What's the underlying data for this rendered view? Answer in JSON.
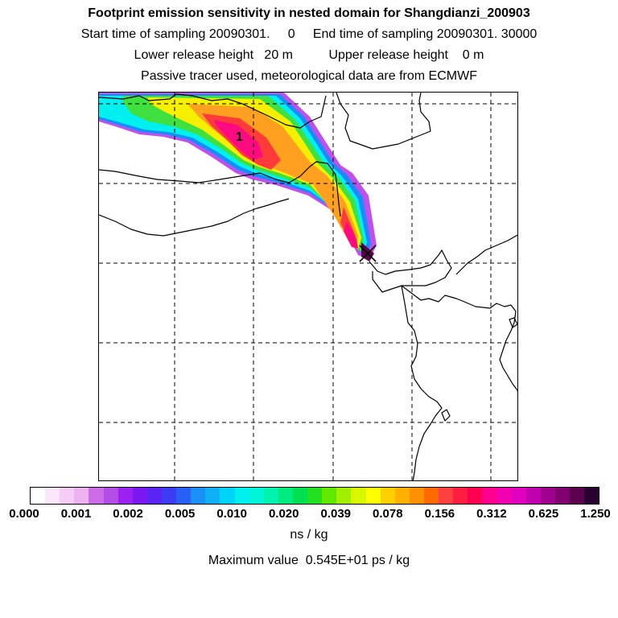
{
  "header": {
    "title": "Footprint emission sensitivity in nested domain for Shangdianzi_200903",
    "line2": "Start time of sampling 20090301.     0     End time of sampling 20090301. 30000",
    "line3": "Lower release height   20 m          Upper release height    0 m",
    "line4": "Passive tracer used, meteorological data are from ECMWF"
  },
  "map": {
    "marker_label": "1",
    "release_marker_icon": "x-cross-icon"
  },
  "colorbar": {
    "colors": [
      "#ffffff",
      "#fbe6fb",
      "#f5cdf6",
      "#eeb2f0",
      "#cc6ae8",
      "#b44de6",
      "#9c20f0",
      "#7a18f2",
      "#5a24f4",
      "#3c3cf4",
      "#2860f6",
      "#1890f8",
      "#10b0f6",
      "#00d4f6",
      "#00f0f0",
      "#00f4d8",
      "#00f4b0",
      "#00ec80",
      "#00e050",
      "#20e020",
      "#60e800",
      "#a0f000",
      "#d8f800",
      "#ffff00",
      "#ffd000",
      "#ffb000",
      "#ff9000",
      "#ff6a00",
      "#ff4040",
      "#ff1e40",
      "#ff0050",
      "#ff0090",
      "#f000b0",
      "#e000c0",
      "#c000b0",
      "#a00090",
      "#800070",
      "#5c0050",
      "#2a0030"
    ],
    "ticks": [
      "0.000",
      "0.001",
      "0.002",
      "0.005",
      "0.010",
      "0.020",
      "0.039",
      "0.078",
      "0.156",
      "0.312",
      "0.625",
      "1.250"
    ],
    "unit": "ns / kg"
  },
  "footer": {
    "max_value": "Maximum value  0.545E+01 ps / kg"
  }
}
